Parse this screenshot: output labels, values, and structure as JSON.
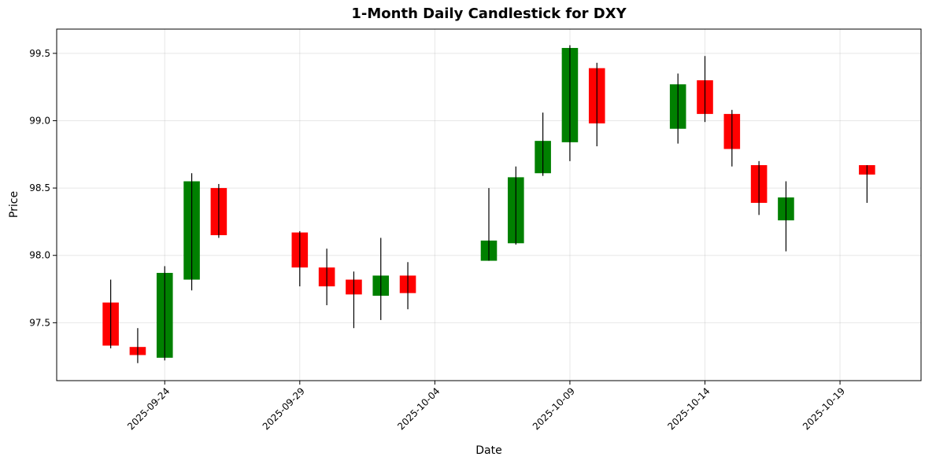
{
  "chart_data": {
    "type": "candlestick",
    "title": "1-Month Daily Candlestick for DXY",
    "xlabel": "Date",
    "ylabel": "Price",
    "ylim": [
      97.07,
      99.68
    ],
    "xlim": [
      "2025-09-20",
      "2025-10-22"
    ],
    "yticks": [
      97.5,
      98.0,
      98.5,
      99.0,
      99.5
    ],
    "ytick_labels": [
      "97.5",
      "98.0",
      "98.5",
      "99.0",
      "99.5"
    ],
    "xticks": [
      "2025-09-24",
      "2025-09-29",
      "2025-10-04",
      "2025-10-09",
      "2025-10-14",
      "2025-10-19"
    ],
    "xtick_labels": [
      "2025-09-24",
      "2025-09-29",
      "2025-10-04",
      "2025-10-09",
      "2025-10-14",
      "2025-10-19"
    ],
    "grid": true,
    "colors": {
      "up": "#008000",
      "down": "#ff0000",
      "wick": "#000000"
    },
    "candles": [
      {
        "date": "2025-09-22",
        "open": 97.65,
        "high": 97.82,
        "low": 97.31,
        "close": 97.33
      },
      {
        "date": "2025-09-23",
        "open": 97.32,
        "high": 97.46,
        "low": 97.2,
        "close": 97.26
      },
      {
        "date": "2025-09-24",
        "open": 97.24,
        "high": 97.92,
        "low": 97.22,
        "close": 97.87
      },
      {
        "date": "2025-09-25",
        "open": 97.82,
        "high": 98.61,
        "low": 97.74,
        "close": 98.55
      },
      {
        "date": "2025-09-26",
        "open": 98.5,
        "high": 98.53,
        "low": 98.13,
        "close": 98.15
      },
      {
        "date": "2025-09-29",
        "open": 98.17,
        "high": 98.18,
        "low": 97.77,
        "close": 97.91
      },
      {
        "date": "2025-09-30",
        "open": 97.91,
        "high": 98.05,
        "low": 97.63,
        "close": 97.77
      },
      {
        "date": "2025-10-01",
        "open": 97.82,
        "high": 97.88,
        "low": 97.46,
        "close": 97.71
      },
      {
        "date": "2025-10-02",
        "open": 97.7,
        "high": 98.13,
        "low": 97.52,
        "close": 97.85
      },
      {
        "date": "2025-10-03",
        "open": 97.85,
        "high": 97.95,
        "low": 97.6,
        "close": 97.72
      },
      {
        "date": "2025-10-06",
        "open": 97.96,
        "high": 98.5,
        "low": 97.96,
        "close": 98.11
      },
      {
        "date": "2025-10-07",
        "open": 98.09,
        "high": 98.66,
        "low": 98.08,
        "close": 98.58
      },
      {
        "date": "2025-10-08",
        "open": 98.61,
        "high": 99.06,
        "low": 98.59,
        "close": 98.85
      },
      {
        "date": "2025-10-09",
        "open": 98.84,
        "high": 99.56,
        "low": 98.7,
        "close": 99.54
      },
      {
        "date": "2025-10-10",
        "open": 99.39,
        "high": 99.43,
        "low": 98.81,
        "close": 98.98
      },
      {
        "date": "2025-10-13",
        "open": 98.94,
        "high": 99.35,
        "low": 98.83,
        "close": 99.27
      },
      {
        "date": "2025-10-14",
        "open": 99.3,
        "high": 99.48,
        "low": 98.99,
        "close": 99.05
      },
      {
        "date": "2025-10-15",
        "open": 99.05,
        "high": 99.08,
        "low": 98.66,
        "close": 98.79
      },
      {
        "date": "2025-10-16",
        "open": 98.67,
        "high": 98.7,
        "low": 98.3,
        "close": 98.39
      },
      {
        "date": "2025-10-17",
        "open": 98.26,
        "high": 98.55,
        "low": 98.03,
        "close": 98.43
      },
      {
        "date": "2025-10-20",
        "open": 98.67,
        "high": 98.67,
        "low": 98.39,
        "close": 98.6
      }
    ]
  }
}
